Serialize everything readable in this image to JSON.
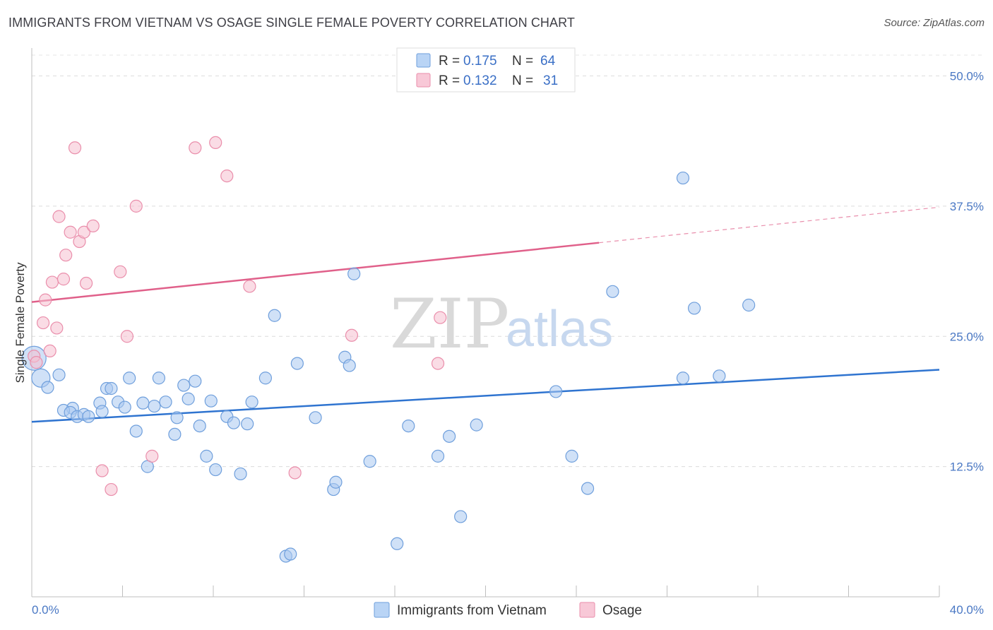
{
  "title": "IMMIGRANTS FROM VIETNAM VS OSAGE SINGLE FEMALE POVERTY CORRELATION CHART",
  "source": "Source: ZipAtlas.com",
  "watermark": {
    "zip": "ZIP",
    "atlas": "atlas"
  },
  "legend_top": {
    "rows": [
      {
        "r_label": "R = ",
        "r_value": "0.175",
        "n_label": "N = ",
        "n_value": "64"
      },
      {
        "r_label": "R = ",
        "r_value": "0.132",
        "n_label": "N = ",
        "n_value": "31"
      }
    ]
  },
  "chart_data": {
    "type": "scatter",
    "xlabel": "",
    "ylabel": "Single Female Poverty",
    "xlim": [
      0,
      40
    ],
    "ylim": [
      0,
      52
    ],
    "x_tick_labels": [
      {
        "value": 0,
        "label": "0.0%"
      },
      {
        "value": 40,
        "label": "40.0%"
      }
    ],
    "y_tick_labels": [
      {
        "value": 12.5,
        "label": "12.5%"
      },
      {
        "value": 25,
        "label": "25.0%"
      },
      {
        "value": 37.5,
        "label": "37.5%"
      },
      {
        "value": 50,
        "label": "50.0%"
      }
    ],
    "x_minor_ticks": [
      4,
      8,
      12,
      16,
      20,
      24,
      28,
      32,
      36,
      40
    ],
    "grid": true,
    "series": [
      {
        "name": "Immigrants from Vietnam",
        "color": "#a9c8f0",
        "stroke": "#6f9fdc",
        "line_color": "#2f74d0",
        "trend": {
          "x0": 0,
          "y0": 16.8,
          "x1": 40,
          "y1": 21.8,
          "dashed_from": null
        },
        "points": [
          [
            0.1,
            22.9,
            "L"
          ],
          [
            0.4,
            21.0,
            "M"
          ],
          [
            0.7,
            20.1,
            "S"
          ],
          [
            1.2,
            21.3,
            "S"
          ],
          [
            1.8,
            18.1,
            "S"
          ],
          [
            1.4,
            17.9,
            "S"
          ],
          [
            1.7,
            17.7,
            "S"
          ],
          [
            2.0,
            17.3,
            "S"
          ],
          [
            2.3,
            17.5,
            "S"
          ],
          [
            2.5,
            17.3,
            "S"
          ],
          [
            3.0,
            18.6,
            "S"
          ],
          [
            3.1,
            17.8,
            "S"
          ],
          [
            3.3,
            20.0,
            "S"
          ],
          [
            3.5,
            20.0,
            "S"
          ],
          [
            3.8,
            18.7,
            "S"
          ],
          [
            4.1,
            18.2,
            "S"
          ],
          [
            4.3,
            21.0,
            "S"
          ],
          [
            4.6,
            15.9,
            "S"
          ],
          [
            4.9,
            18.6,
            "S"
          ],
          [
            5.1,
            12.5,
            "S"
          ],
          [
            5.4,
            18.3,
            "S"
          ],
          [
            5.6,
            21.0,
            "S"
          ],
          [
            5.9,
            18.7,
            "S"
          ],
          [
            6.3,
            15.6,
            "S"
          ],
          [
            6.4,
            17.2,
            "S"
          ],
          [
            6.7,
            20.3,
            "S"
          ],
          [
            6.9,
            19.0,
            "S"
          ],
          [
            7.2,
            20.7,
            "S"
          ],
          [
            7.4,
            16.4,
            "S"
          ],
          [
            7.7,
            13.5,
            "S"
          ],
          [
            7.9,
            18.8,
            "S"
          ],
          [
            8.1,
            12.2,
            "S"
          ],
          [
            8.6,
            17.3,
            "S"
          ],
          [
            8.9,
            16.7,
            "S"
          ],
          [
            9.2,
            11.8,
            "S"
          ],
          [
            9.5,
            16.6,
            "S"
          ],
          [
            9.7,
            18.7,
            "S"
          ],
          [
            10.3,
            21.0,
            "S"
          ],
          [
            10.7,
            27.0,
            "S"
          ],
          [
            11.2,
            3.9,
            "S"
          ],
          [
            11.4,
            4.1,
            "S"
          ],
          [
            11.7,
            22.4,
            "S"
          ],
          [
            12.5,
            17.2,
            "S"
          ],
          [
            13.3,
            10.3,
            "S"
          ],
          [
            13.4,
            11.0,
            "S"
          ],
          [
            13.8,
            23.0,
            "S"
          ],
          [
            14.0,
            22.2,
            "S"
          ],
          [
            14.2,
            31.0,
            "S"
          ],
          [
            14.9,
            13.0,
            "S"
          ],
          [
            16.1,
            5.1,
            "S"
          ],
          [
            16.6,
            16.4,
            "S"
          ],
          [
            17.9,
            13.5,
            "S"
          ],
          [
            18.4,
            15.4,
            "S"
          ],
          [
            18.9,
            7.7,
            "S"
          ],
          [
            19.6,
            16.5,
            "S"
          ],
          [
            23.1,
            19.7,
            "S"
          ],
          [
            23.8,
            13.5,
            "S"
          ],
          [
            24.5,
            10.4,
            "S"
          ],
          [
            25.6,
            29.3,
            "S"
          ],
          [
            28.7,
            40.2,
            "S"
          ],
          [
            28.7,
            21.0,
            "S"
          ],
          [
            29.2,
            27.7,
            "S"
          ],
          [
            30.3,
            21.2,
            "S"
          ],
          [
            31.6,
            28.0,
            "S"
          ]
        ]
      },
      {
        "name": "Osage",
        "color": "#f6bfd0",
        "stroke": "#ea8eab",
        "line_color": "#e0608a",
        "trend": {
          "x0": 0,
          "y0": 28.3,
          "x1": 40,
          "y1": 37.4,
          "dashed_from": 25
        },
        "points": [
          [
            0.1,
            23.1,
            "S"
          ],
          [
            0.2,
            22.5,
            "S"
          ],
          [
            0.5,
            26.3,
            "S"
          ],
          [
            0.6,
            28.5,
            "S"
          ],
          [
            0.8,
            23.6,
            "S"
          ],
          [
            0.9,
            30.2,
            "S"
          ],
          [
            1.1,
            25.8,
            "S"
          ],
          [
            1.2,
            36.5,
            "S"
          ],
          [
            1.4,
            30.5,
            "S"
          ],
          [
            1.5,
            32.8,
            "S"
          ],
          [
            1.7,
            35.0,
            "S"
          ],
          [
            1.9,
            43.1,
            "S"
          ],
          [
            2.1,
            34.1,
            "S"
          ],
          [
            2.3,
            35.0,
            "S"
          ],
          [
            2.4,
            30.1,
            "S"
          ],
          [
            2.7,
            35.6,
            "S"
          ],
          [
            3.1,
            12.1,
            "S"
          ],
          [
            3.5,
            10.3,
            "S"
          ],
          [
            3.9,
            31.2,
            "S"
          ],
          [
            4.2,
            25.0,
            "S"
          ],
          [
            4.6,
            37.5,
            "S"
          ],
          [
            5.3,
            13.5,
            "S"
          ],
          [
            7.2,
            43.1,
            "S"
          ],
          [
            8.1,
            43.6,
            "S"
          ],
          [
            8.6,
            40.4,
            "S"
          ],
          [
            9.6,
            29.8,
            "S"
          ],
          [
            11.6,
            11.9,
            "S"
          ],
          [
            14.1,
            25.1,
            "S"
          ],
          [
            17.9,
            22.4,
            "S"
          ],
          [
            18.0,
            26.8,
            "S"
          ],
          [
            23.0,
            50.0,
            "S"
          ]
        ]
      }
    ]
  },
  "bottom_legend": [
    "Immigrants from Vietnam",
    "Osage"
  ]
}
